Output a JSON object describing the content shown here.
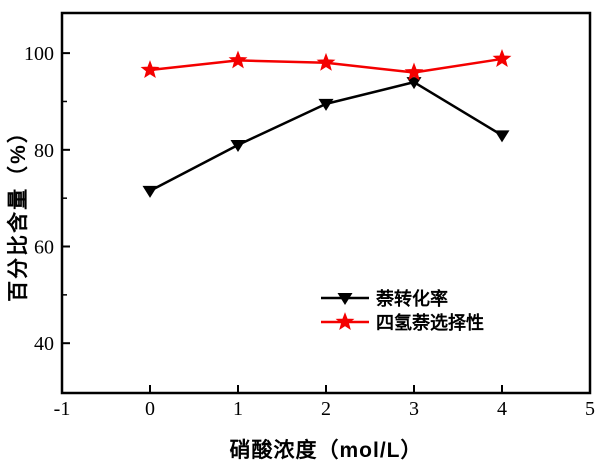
{
  "figure": {
    "background": "#ffffff",
    "axis_color": "#000000"
  },
  "chart_data": {
    "type": "line",
    "title": "",
    "xlabel": "硝酸浓度（mol/L）",
    "ylabel": "百分比含量（%）",
    "x": [
      0,
      1,
      2,
      3,
      4
    ],
    "series": [
      {
        "name": "萘转化率",
        "values": [
          71.5,
          81,
          89.5,
          94,
          83
        ],
        "color": "#000000",
        "marker": "triangle-down"
      },
      {
        "name": "四氢萘选择性",
        "values": [
          96.5,
          98.5,
          98,
          96,
          98.8
        ],
        "color": "#f40000",
        "marker": "star"
      }
    ],
    "xlim": [
      -1,
      5
    ],
    "ylim": [
      29.7,
      108.3
    ],
    "x_ticks": [
      -1,
      0,
      1,
      2,
      3,
      4,
      5
    ],
    "y_major_ticks": [
      40,
      60,
      80,
      100
    ],
    "y_minor_ticks": [
      50,
      70,
      90
    ],
    "grid": false,
    "legend_position": "inside-lower-right"
  }
}
